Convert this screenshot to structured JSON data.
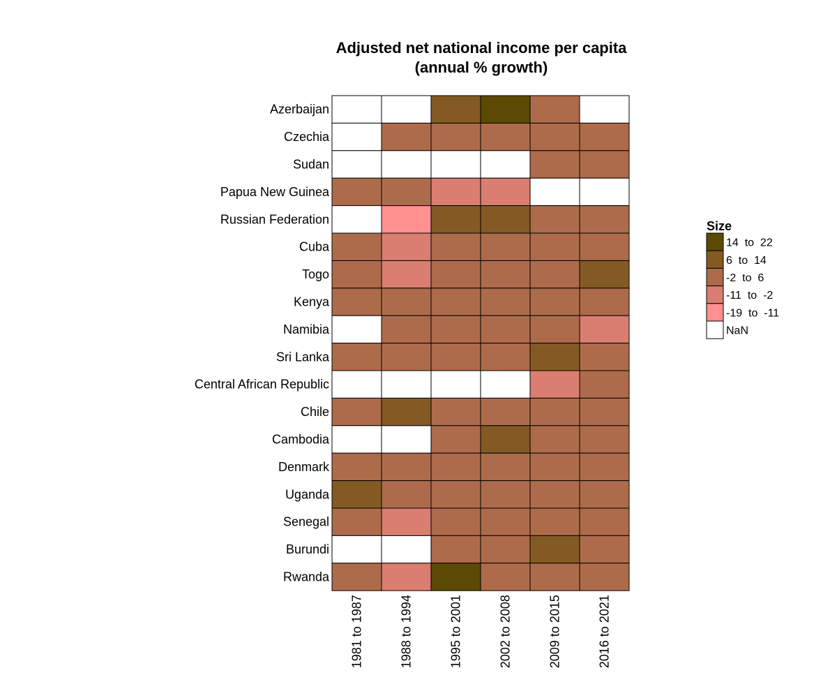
{
  "chart_data": {
    "type": "heatmap",
    "title": [
      "Adjusted net national income per capita",
      "(annual % growth)"
    ],
    "rows": [
      "Azerbaijan",
      "Czechia",
      "Sudan",
      "Papua New Guinea",
      "Russian Federation",
      "Cuba",
      "Togo",
      "Kenya",
      "Namibia",
      "Sri Lanka",
      "Central African Republic",
      "Chile",
      "Cambodia",
      "Denmark",
      "Uganda",
      "Senegal",
      "Burundi",
      "Rwanda"
    ],
    "columns": [
      "1981 to 1987",
      "1988 to 1994",
      "1995 to 2001",
      "2002 to 2008",
      "2009 to 2015",
      "2016 to 2021"
    ],
    "values": [
      [
        "NaN",
        "NaN",
        "6 to 14",
        "14 to 22",
        "-2 to 6",
        "NaN"
      ],
      [
        "NaN",
        "-2 to 6",
        "-2 to 6",
        "-2 to 6",
        "-2 to 6",
        "-2 to 6"
      ],
      [
        "NaN",
        "NaN",
        "NaN",
        "NaN",
        "-2 to 6",
        "-2 to 6"
      ],
      [
        "-2 to 6",
        "-2 to 6",
        "-11 to -2",
        "-11 to -2",
        "NaN",
        "NaN"
      ],
      [
        "NaN",
        "-19 to -11",
        "6 to 14",
        "6 to 14",
        "-2 to 6",
        "-2 to 6"
      ],
      [
        "-2 to 6",
        "-11 to -2",
        "-2 to 6",
        "-2 to 6",
        "-2 to 6",
        "-2 to 6"
      ],
      [
        "-2 to 6",
        "-11 to -2",
        "-2 to 6",
        "-2 to 6",
        "-2 to 6",
        "6 to 14"
      ],
      [
        "-2 to 6",
        "-2 to 6",
        "-2 to 6",
        "-2 to 6",
        "-2 to 6",
        "-2 to 6"
      ],
      [
        "NaN",
        "-2 to 6",
        "-2 to 6",
        "-2 to 6",
        "-2 to 6",
        "-11 to -2"
      ],
      [
        "-2 to 6",
        "-2 to 6",
        "-2 to 6",
        "-2 to 6",
        "6 to 14",
        "-2 to 6"
      ],
      [
        "NaN",
        "NaN",
        "NaN",
        "NaN",
        "-11 to -2",
        "-2 to 6"
      ],
      [
        "-2 to 6",
        "6 to 14",
        "-2 to 6",
        "-2 to 6",
        "-2 to 6",
        "-2 to 6"
      ],
      [
        "NaN",
        "NaN",
        "-2 to 6",
        "6 to 14",
        "-2 to 6",
        "-2 to 6"
      ],
      [
        "-2 to 6",
        "-2 to 6",
        "-2 to 6",
        "-2 to 6",
        "-2 to 6",
        "-2 to 6"
      ],
      [
        "6 to 14",
        "-2 to 6",
        "-2 to 6",
        "-2 to 6",
        "-2 to 6",
        "-2 to 6"
      ],
      [
        "-2 to 6",
        "-11 to -2",
        "-2 to 6",
        "-2 to 6",
        "-2 to 6",
        "-2 to 6"
      ],
      [
        "NaN",
        "NaN",
        "-2 to 6",
        "-2 to 6",
        "6 to 14",
        "-2 to 6"
      ],
      [
        "-2 to 6",
        "-11 to -2",
        "14 to 22",
        "-2 to 6",
        "-2 to 6",
        "-2 to 6"
      ]
    ],
    "legend": {
      "title": "Size",
      "position": "right",
      "items": [
        {
          "label": "14  to  22",
          "key": "14 to 22",
          "color": "#5c4a04"
        },
        {
          "label": "6  to  14",
          "key": "6 to 14",
          "color": "#845a24"
        },
        {
          "label": "-2  to  6",
          "key": "-2 to 6",
          "color": "#ad6b4b"
        },
        {
          "label": "-11  to  -2",
          "key": "-11 to -2",
          "color": "#d97e70"
        },
        {
          "label": "-19  to  -11",
          "key": "-19 to -11",
          "color": "#ff9090"
        },
        {
          "label": "NaN",
          "key": "NaN",
          "color": "#ffffff"
        }
      ]
    }
  }
}
